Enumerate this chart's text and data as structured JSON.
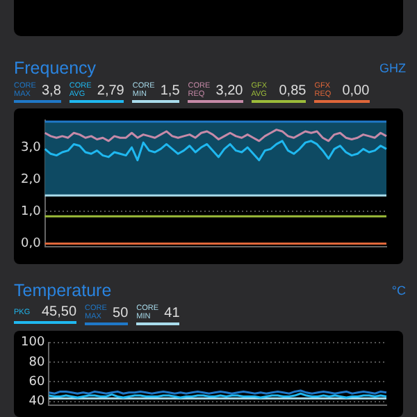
{
  "chart_data": [
    {
      "type": "line",
      "title": "Frequency",
      "ylabel": "GHZ",
      "legend": "top",
      "grid": "y",
      "marker": "none",
      "line_style": "solid",
      "tick_labels": "y",
      "categories": [
        null,
        null,
        null,
        null,
        null,
        null,
        null,
        null,
        null,
        null,
        null,
        null,
        null,
        null,
        null,
        null,
        null,
        null,
        null,
        null,
        null,
        null,
        null,
        null,
        null,
        null,
        null,
        null,
        null,
        null,
        null,
        null,
        null,
        null,
        null,
        null,
        null,
        null,
        null,
        null,
        null,
        null,
        null,
        null,
        null,
        null,
        null,
        null,
        null,
        null,
        null,
        null,
        null,
        null,
        null,
        null,
        null,
        null,
        null,
        null
      ],
      "ylim": [
        -0.1,
        3.85
      ],
      "yticks": [
        {
          "value": 0,
          "label": "0,0"
        },
        {
          "value": 1,
          "label": "1,0"
        },
        {
          "value": 2,
          "label": "2,0"
        },
        {
          "value": 3,
          "label": "3,0"
        }
      ],
      "bands": [
        {
          "axis": "y",
          "from": 1.5,
          "to": 3.8,
          "color": "#0e4a63"
        }
      ],
      "annotations": [
        "3,8",
        "2,79",
        "1,5",
        "3,20",
        "0,85",
        "0,00"
      ],
      "series": [
        {
          "name": "CORE MAX",
          "color": "#1f78c8",
          "values": [
            3.8,
            3.8,
            3.8,
            3.8,
            3.8,
            3.8,
            3.8,
            3.8,
            3.8,
            3.8,
            3.8,
            3.8,
            3.8,
            3.8,
            3.8,
            3.8,
            3.8,
            3.8,
            3.8,
            3.8,
            3.8,
            3.8,
            3.8,
            3.8,
            3.8,
            3.8,
            3.8,
            3.8,
            3.8,
            3.8,
            3.8,
            3.8,
            3.8,
            3.8,
            3.8,
            3.8,
            3.8,
            3.8,
            3.8,
            3.8,
            3.8,
            3.8,
            3.8,
            3.8,
            3.8,
            3.8,
            3.8,
            3.8,
            3.8,
            3.8,
            3.8,
            3.8,
            3.8,
            3.8,
            3.8,
            3.8,
            3.8,
            3.8,
            3.8,
            3.8
          ]
        },
        {
          "name": "CORE AVG",
          "color": "#1fb8f0",
          "values": [
            2.95,
            2.8,
            2.75,
            2.85,
            2.9,
            3.1,
            3.05,
            2.85,
            2.8,
            2.9,
            2.75,
            2.7,
            2.85,
            2.8,
            2.75,
            3.0,
            2.6,
            3.15,
            2.9,
            2.85,
            2.95,
            3.1,
            2.95,
            2.8,
            2.9,
            3.05,
            2.85,
            3.0,
            3.1,
            2.9,
            2.7,
            2.95,
            3.1,
            2.9,
            2.85,
            3.0,
            2.8,
            2.6,
            2.9,
            2.95,
            3.1,
            3.2,
            2.9,
            2.8,
            2.95,
            3.15,
            3.2,
            3.1,
            2.9,
            2.65,
            2.95,
            3.05,
            2.85,
            2.75,
            2.8,
            2.95,
            2.85,
            2.9,
            3.05,
            2.95
          ]
        },
        {
          "name": "CORE MIN",
          "color": "#a9dcec",
          "values": [
            1.5,
            1.5,
            1.5,
            1.5,
            1.5,
            1.5,
            1.5,
            1.5,
            1.5,
            1.5,
            1.5,
            1.5,
            1.5,
            1.5,
            1.5,
            1.5,
            1.5,
            1.5,
            1.5,
            1.5,
            1.5,
            1.5,
            1.5,
            1.5,
            1.5,
            1.5,
            1.5,
            1.5,
            1.5,
            1.5,
            1.5,
            1.5,
            1.5,
            1.5,
            1.5,
            1.5,
            1.5,
            1.5,
            1.5,
            1.5,
            1.5,
            1.5,
            1.5,
            1.5,
            1.5,
            1.5,
            1.5,
            1.5,
            1.5,
            1.5,
            1.5,
            1.5,
            1.5,
            1.5,
            1.5,
            1.5,
            1.5,
            1.5,
            1.5,
            1.5
          ]
        },
        {
          "name": "CORE REQ",
          "color": "#c68aa8",
          "values": [
            3.45,
            3.35,
            3.3,
            3.35,
            3.3,
            3.45,
            3.4,
            3.3,
            3.35,
            3.25,
            3.3,
            3.2,
            3.35,
            3.3,
            3.3,
            3.45,
            3.3,
            3.4,
            3.35,
            3.3,
            3.4,
            3.5,
            3.35,
            3.3,
            3.35,
            3.4,
            3.3,
            3.45,
            3.5,
            3.4,
            3.25,
            3.35,
            3.45,
            3.35,
            3.3,
            3.4,
            3.3,
            3.2,
            3.35,
            3.45,
            3.55,
            3.5,
            3.35,
            3.3,
            3.4,
            3.5,
            3.45,
            3.5,
            3.3,
            3.2,
            3.4,
            3.45,
            3.3,
            3.25,
            3.3,
            3.4,
            3.35,
            3.3,
            3.45,
            3.35
          ]
        },
        {
          "name": "GFX AVG",
          "color": "#9cbc3a",
          "values": [
            0.85,
            0.85,
            0.85,
            0.85,
            0.85,
            0.85,
            0.85,
            0.85,
            0.85,
            0.85,
            0.85,
            0.85,
            0.85,
            0.85,
            0.85,
            0.85,
            0.85,
            0.85,
            0.85,
            0.85,
            0.85,
            0.85,
            0.85,
            0.85,
            0.85,
            0.85,
            0.85,
            0.85,
            0.85,
            0.85,
            0.85,
            0.85,
            0.85,
            0.85,
            0.85,
            0.85,
            0.85,
            0.85,
            0.85,
            0.85,
            0.85,
            0.85,
            0.85,
            0.85,
            0.85,
            0.85,
            0.85,
            0.85,
            0.85,
            0.85,
            0.85,
            0.85,
            0.85,
            0.85,
            0.85,
            0.85,
            0.85,
            0.85,
            0.85,
            0.85
          ]
        },
        {
          "name": "GFX REQ",
          "color": "#e0673a",
          "values": [
            0,
            0,
            0,
            0,
            0,
            0,
            0,
            0,
            0,
            0,
            0,
            0,
            0,
            0,
            0,
            0,
            0,
            0,
            0,
            0,
            0,
            0,
            0,
            0,
            0,
            0,
            0,
            0,
            0,
            0,
            0,
            0,
            0,
            0,
            0,
            0,
            0,
            0,
            0,
            0,
            0,
            0,
            0,
            0,
            0,
            0,
            0,
            0,
            0,
            0,
            0,
            0,
            0,
            0,
            0,
            0,
            0,
            0,
            0,
            0
          ]
        }
      ]
    },
    {
      "type": "line",
      "title": "Temperature",
      "ylabel": "°C",
      "legend": "top",
      "grid": "y",
      "marker": "none",
      "line_style": "solid",
      "tick_labels": "y",
      "categories": [
        null,
        null,
        null,
        null,
        null,
        null,
        null,
        null,
        null,
        null,
        null,
        null,
        null,
        null,
        null,
        null,
        null,
        null,
        null,
        null,
        null,
        null,
        null,
        null,
        null,
        null,
        null,
        null,
        null,
        null,
        null,
        null,
        null,
        null,
        null,
        null,
        null,
        null,
        null,
        null,
        null,
        null,
        null,
        null,
        null,
        null,
        null,
        null,
        null,
        null,
        null,
        null,
        null,
        null,
        null,
        null,
        null,
        null,
        null,
        null
      ],
      "ylim": [
        36,
        100
      ],
      "yticks": [
        40,
        60,
        80,
        100
      ],
      "annotations": [
        "45,50",
        "50",
        "41"
      ],
      "series": [
        {
          "name": "PKG",
          "color": "#1fb8f0",
          "values": [
            46,
            45,
            45,
            46,
            45,
            44,
            45,
            46,
            46,
            45,
            45,
            47,
            45,
            44,
            45,
            46,
            46,
            45,
            45,
            45,
            46,
            46,
            45,
            44,
            45,
            45,
            46,
            46,
            45,
            45,
            46,
            45,
            46,
            46,
            45,
            45,
            45,
            44,
            45,
            46,
            46,
            45,
            45,
            46,
            48,
            46,
            45,
            45,
            46,
            45,
            46,
            45,
            44,
            45,
            45,
            46,
            46,
            45,
            46,
            45
          ]
        },
        {
          "name": "CORE MAX",
          "color": "#1f78c8",
          "values": [
            49,
            48,
            50,
            50,
            49,
            48,
            49,
            48,
            50,
            49,
            48,
            49,
            50,
            48,
            49,
            49,
            50,
            49,
            48,
            49,
            50,
            49,
            48,
            49,
            48,
            49,
            50,
            49,
            48,
            49,
            50,
            49,
            48,
            49,
            50,
            49,
            48,
            49,
            48,
            49,
            50,
            49,
            48,
            50,
            51,
            49,
            48,
            49,
            50,
            49,
            48,
            49,
            50,
            48,
            49,
            50,
            49,
            48,
            50,
            49
          ]
        },
        {
          "name": "CORE MIN",
          "color": "#a9dcec",
          "values": [
            43,
            43,
            43,
            43,
            43,
            43,
            43,
            43,
            43,
            43,
            43,
            43,
            43,
            43,
            43,
            43,
            43,
            43,
            43,
            43,
            43,
            43,
            43,
            43,
            43,
            43,
            43,
            43,
            43,
            43,
            43,
            43,
            43,
            43,
            43,
            43,
            43,
            43,
            43,
            43,
            43,
            43,
            43,
            43,
            43,
            43,
            43,
            43,
            43,
            43,
            43,
            43,
            43,
            43,
            43,
            43,
            43,
            43,
            43,
            43
          ]
        }
      ]
    }
  ]
}
